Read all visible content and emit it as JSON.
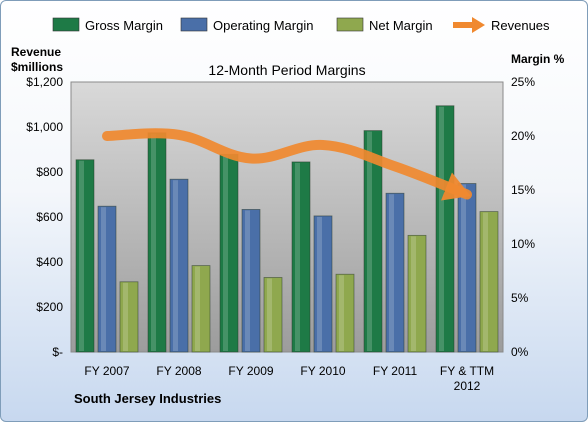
{
  "chart_data": {
    "type": "bar",
    "title": "12-Month Period Margins",
    "categories": [
      "FY 2007",
      "FY 2008",
      "FY 2009",
      "FY 2010",
      "FY 2011",
      "FY & TTM|2012"
    ],
    "series": [
      {
        "name": "Gross Margin",
        "axis": "right",
        "color": "#1e7a46",
        "values": [
          17.8,
          20.3,
          18.3,
          17.6,
          20.5,
          22.8
        ]
      },
      {
        "name": "Operating Margin",
        "axis": "right",
        "color": "#4a6fa8",
        "values": [
          13.5,
          16.0,
          13.2,
          12.6,
          14.7,
          15.6
        ]
      },
      {
        "name": "Net Margin",
        "axis": "right",
        "color": "#8fa84e",
        "values": [
          6.5,
          8.0,
          6.9,
          7.2,
          10.8,
          13.0
        ]
      },
      {
        "name": "Revenues",
        "axis": "left",
        "type": "line",
        "color": "#f0892f",
        "values": [
          960,
          965,
          860,
          920,
          825,
          700
        ]
      }
    ],
    "left_axis": {
      "label_line1": "Revenue",
      "label_line2": "$millions",
      "ticks": [
        "$-",
        "$200",
        "$400",
        "$600",
        "$800",
        "$1,000",
        "$1,200"
      ],
      "range": [
        0,
        1200
      ]
    },
    "right_axis": {
      "label": "Margin %",
      "ticks": [
        "0%",
        "5%",
        "10%",
        "15%",
        "20%",
        "25%"
      ],
      "range": [
        0,
        25
      ]
    },
    "grid": false,
    "legend_position": "top",
    "subject": "South Jersey Industries"
  }
}
